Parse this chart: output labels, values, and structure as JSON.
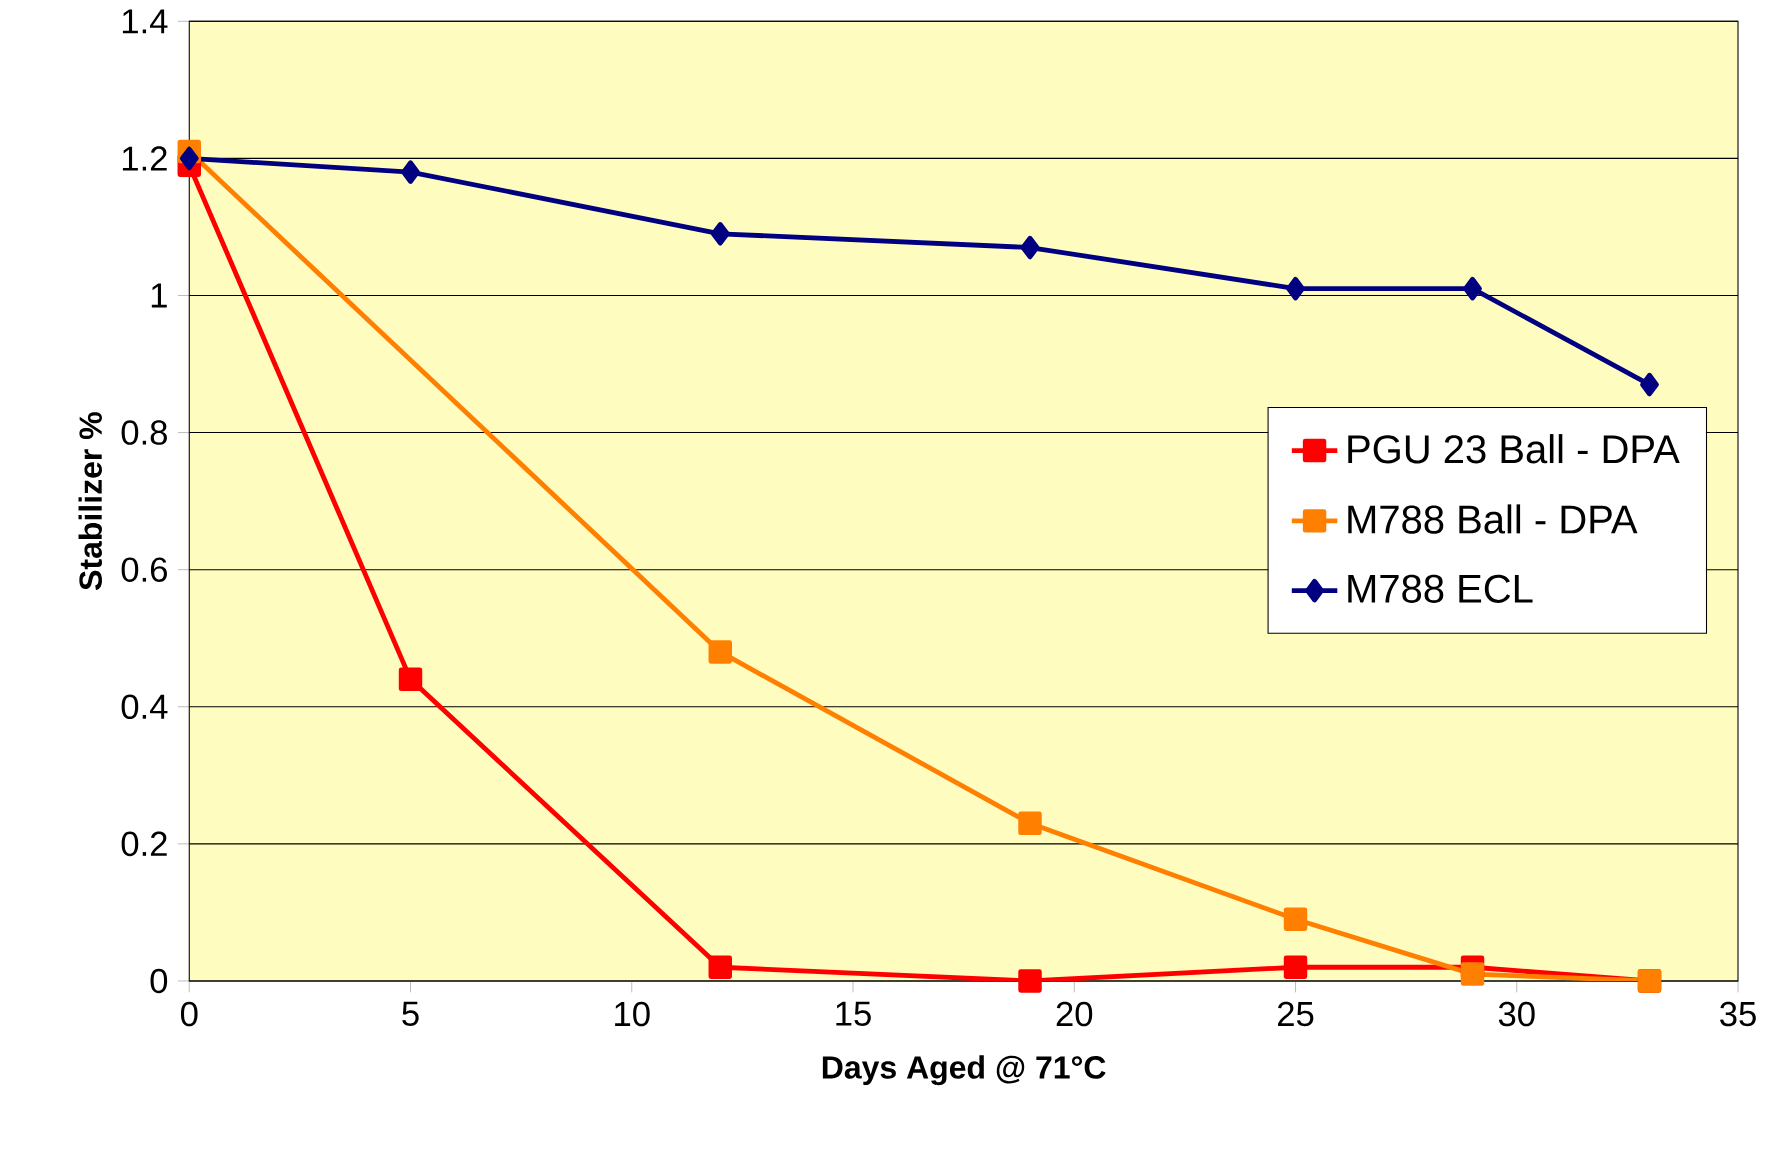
{
  "chart_data": {
    "type": "line",
    "xlabel": "Days Aged @ 71°C",
    "ylabel": "Stabilizer %",
    "xlim": [
      0,
      35
    ],
    "xticks": [
      0,
      5,
      10,
      15,
      20,
      25,
      30,
      35
    ],
    "ylim": [
      0,
      1.4
    ],
    "yticks": [
      0,
      0.2,
      0.4,
      0.6,
      0.8,
      1,
      1.2,
      1.4
    ],
    "grid": "y",
    "legend": "right",
    "line_style": "solid",
    "series": [
      {
        "name": "PGU 23 Ball - DPA",
        "color": "#ff0000",
        "marker": "square",
        "x": [
          0,
          5,
          12,
          19,
          25,
          29,
          33
        ],
        "values": [
          1.19,
          0.44,
          0.02,
          0.0,
          0.02,
          0.02,
          0.0
        ]
      },
      {
        "name": "M788 Ball - DPA",
        "color": "#ff8000",
        "marker": "square",
        "x": [
          0,
          12,
          19,
          25,
          29,
          33
        ],
        "values": [
          1.21,
          0.48,
          0.23,
          0.09,
          0.01,
          0.0
        ]
      },
      {
        "name": "M788 ECL",
        "color": "#000080",
        "marker": "diamond",
        "x": [
          0,
          5,
          12,
          19,
          25,
          29,
          33
        ],
        "values": [
          1.2,
          1.18,
          1.09,
          1.07,
          1.01,
          1.01,
          0.87
        ]
      }
    ]
  }
}
